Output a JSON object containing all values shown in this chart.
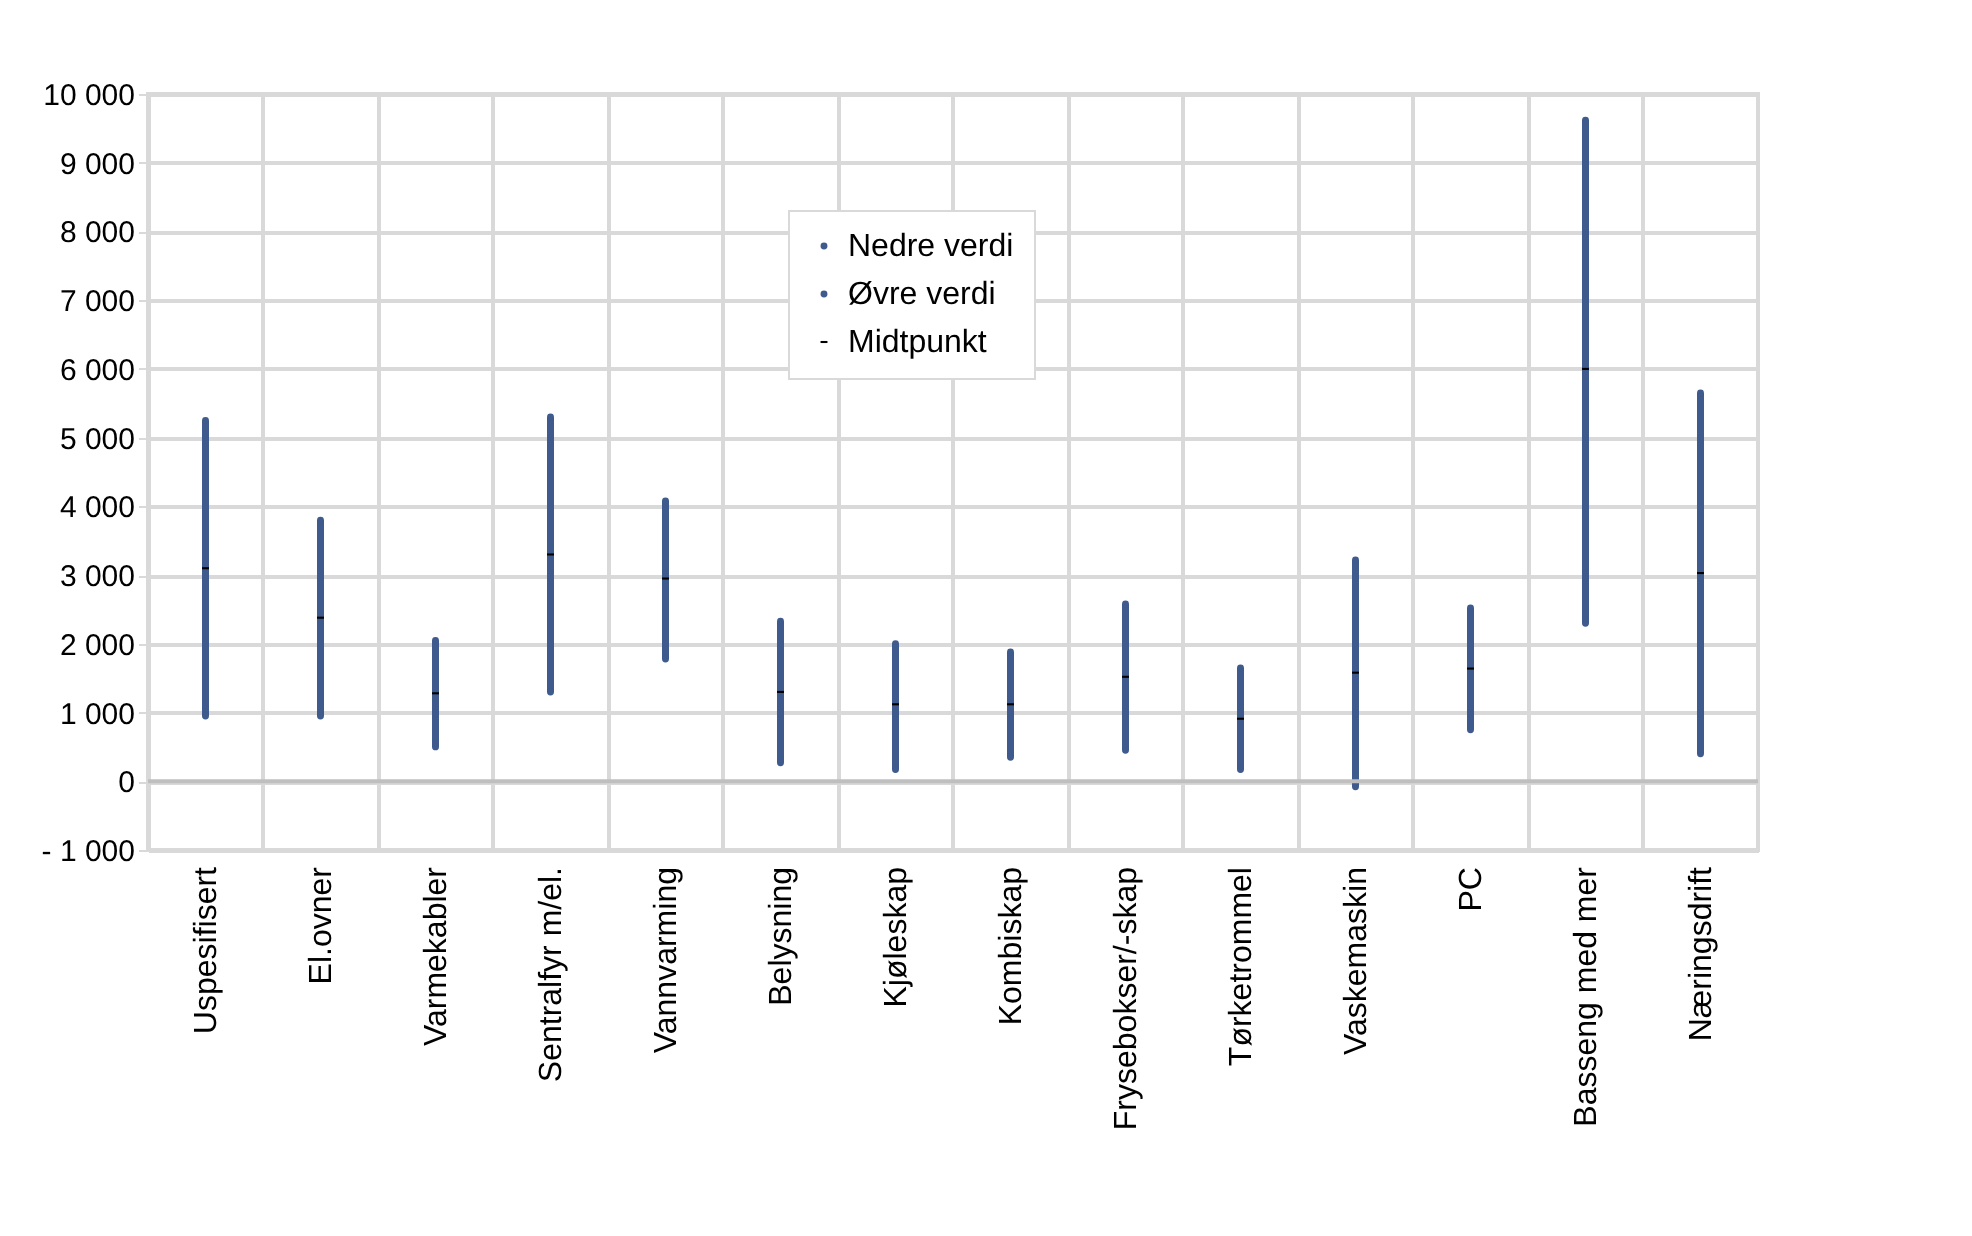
{
  "chart_data": {
    "type": "scatter",
    "categories": [
      "Uspesifisert",
      "El.ovner",
      "Varmekabler",
      "Sentralfyr m/el.",
      "Vannvarming",
      "Belysning",
      "Kjøleskap",
      "Kombiskap",
      "Frysebokser/-skap",
      "Tørketrommel",
      "Vaskemaskin",
      "PC",
      "Basseng med mer",
      "Næringsdrift"
    ],
    "series": [
      {
        "name": "Nedre verdi",
        "color": "#3f5a8c",
        "marker": "circle",
        "values": [
          950,
          950,
          500,
          1300,
          1780,
          270,
          170,
          350,
          450,
          170,
          -80,
          750,
          2300,
          400
        ]
      },
      {
        "name": "Øvre verdi",
        "color": "#3f5a8c",
        "marker": "circle",
        "values": [
          5250,
          3800,
          2050,
          5300,
          4080,
          2330,
          2000,
          1880,
          2580,
          1650,
          3220,
          2520,
          9620,
          5650
        ]
      },
      {
        "name": "Midtpunkt",
        "color": "#000000",
        "marker": "square",
        "values": [
          3100,
          2380,
          1280,
          3300,
          2950,
          1300,
          1120,
          1120,
          1520,
          910,
          1580,
          1640,
          6000,
          3030
        ]
      }
    ],
    "ylim": [
      -1000,
      10000
    ],
    "yticks": [
      {
        "value": -1000,
        "label": "- 1 000"
      },
      0,
      {
        "value": 1000,
        "label": "1 000"
      },
      {
        "value": 2000,
        "label": "2 000"
      },
      {
        "value": 3000,
        "label": "3 000"
      },
      {
        "value": 4000,
        "label": "4 000"
      },
      {
        "value": 5000,
        "label": "5 000"
      },
      {
        "value": 6000,
        "label": "6 000"
      },
      {
        "value": 7000,
        "label": "7 000"
      },
      {
        "value": 8000,
        "label": "8 000"
      },
      {
        "value": 9000,
        "label": "9 000"
      },
      {
        "value": 10000,
        "label": "10 000"
      }
    ],
    "grid": true,
    "legend": "top"
  }
}
